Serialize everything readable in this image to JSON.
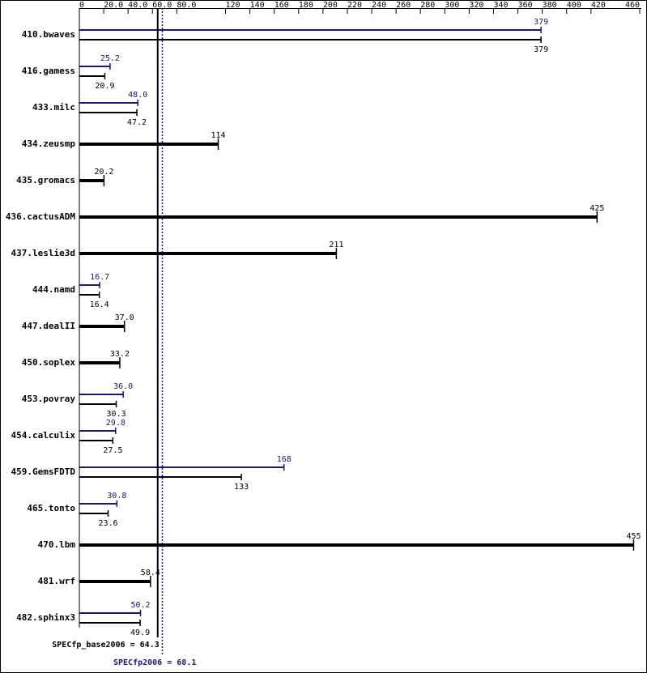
{
  "chart_data": {
    "type": "bar",
    "categories": [
      "410.bwaves",
      "416.gamess",
      "433.milc",
      "434.zeusmp",
      "435.gromacs",
      "436.cactusADM",
      "437.leslie3d",
      "444.namd",
      "447.dealII",
      "450.soplex",
      "453.povray",
      "454.calculix",
      "459.GemsFDTD",
      "465.tonto",
      "470.lbm",
      "481.wrf",
      "482.sphinx3"
    ],
    "series": [
      {
        "color": "#191970",
        "values": [
          379,
          25.2,
          48.0,
          null,
          null,
          null,
          null,
          16.7,
          null,
          null,
          36.0,
          29.8,
          168,
          30.8,
          null,
          null,
          50.2
        ],
        "value_labels": [
          "379",
          "25.2",
          "48.0",
          null,
          null,
          null,
          null,
          "16.7",
          null,
          null,
          "36.0",
          "29.8",
          "168",
          "30.8",
          null,
          null,
          "50.2"
        ]
      },
      {
        "color": "#000000",
        "values": [
          379,
          20.9,
          47.2,
          114,
          20.2,
          425,
          211,
          16.4,
          37.0,
          33.2,
          30.3,
          27.5,
          133,
          23.6,
          455,
          58.4,
          49.9
        ],
        "value_labels": [
          "379",
          "20.9",
          "47.2",
          "114",
          "20.2",
          "425",
          "211",
          "16.4",
          "37.0",
          "33.2",
          "30.3",
          "27.5",
          "133",
          "23.6",
          "455",
          "58.4",
          "49.9"
        ]
      }
    ],
    "xlim": [
      0,
      460
    ],
    "xticks": [
      0,
      {
        "value": 20,
        "label": "20.0"
      },
      {
        "value": 40,
        "label": "40.0"
      },
      {
        "value": 60,
        "label": "60.0"
      },
      {
        "value": 80,
        "label": "80.0"
      },
      120,
      140,
      160,
      180,
      200,
      220,
      240,
      260,
      280,
      300,
      320,
      340,
      360,
      380,
      400,
      420,
      460
    ],
    "reference_lines": [
      {
        "value": 64.3,
        "label": "SPECfp_base2006 = 64.3",
        "color": "#000000",
        "style": "solid"
      },
      {
        "value": 68.1,
        "label": "SPECfp2006 = 68.1",
        "color": "#191970",
        "style": "dotted"
      }
    ]
  }
}
